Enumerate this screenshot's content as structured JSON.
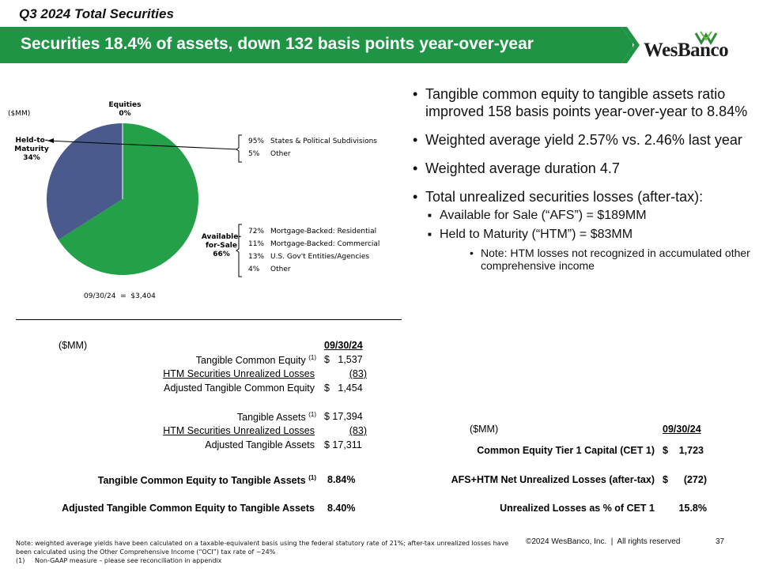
{
  "header": {
    "slide_label": "Q3 2024 Total Securities",
    "banner_title": "Securities 18.4% of assets, down 132 basis points year-over-year",
    "logo_text": "WesBanco",
    "colors": {
      "banner_green": "#1e9444",
      "logo_green": "#2e8b3a"
    }
  },
  "pie": {
    "unit_label": "($MM)",
    "total_label": "09/30/24  =  $3,404",
    "chart_data": {
      "type": "pie",
      "slices": [
        {
          "name": "Equities",
          "value": 0,
          "label": "Equities\n0%",
          "color": "#ffffff"
        },
        {
          "name": "Held-to-Maturity",
          "value": 34,
          "label": "Held-to-Maturity 34%",
          "color": "#4a5a8c"
        },
        {
          "name": "Available-for-Sale",
          "value": 66,
          "label": "Available-for-Sale 66%",
          "color": "#24a048"
        }
      ]
    },
    "labels": {
      "equities_name": "Equities",
      "equities_pct": "0%",
      "htm_name1": "Held-to-",
      "htm_name2": "Maturity",
      "htm_pct": "34%",
      "afs_name1": "Available-",
      "afs_name2": "for-Sale",
      "afs_pct": "66%"
    },
    "htm_breakdown": [
      {
        "pct": "95%",
        "label": "States & Political Subdivisions"
      },
      {
        "pct": "5%",
        "label": "Other"
      }
    ],
    "afs_breakdown": [
      {
        "pct": "72%",
        "label": "Mortgage-Backed: Residential"
      },
      {
        "pct": "11%",
        "label": "Mortgage-Backed: Commercial"
      },
      {
        "pct": "13%",
        "label": "U.S. Gov't Entities/Agencies"
      },
      {
        "pct": "4%",
        "label": "Other"
      }
    ]
  },
  "bullets": {
    "b1": "Tangible common equity to tangible assets ratio improved 158 basis points year-over-year to 8.84%",
    "b2": "Weighted average yield 2.57% vs. 2.46% last year",
    "b3": "Weighted average duration 4.7",
    "b4": "Total unrealized securities losses (after-tax):",
    "b4_sub1": "Available for Sale (“AFS”) = $189MM",
    "b4_sub2": "Held to Maturity (“HTM”) = $83MM",
    "b4_note": "Note: HTM losses not recognized in accumulated other comprehensive income"
  },
  "left_table": {
    "unit": "($MM)",
    "date_header": "09/30/24",
    "rows": [
      {
        "label": "Tangible Common Equity",
        "sup": "(1)",
        "value": "$   1,537"
      },
      {
        "label": "HTM Securities Unrealized Losses",
        "value": "(83)"
      },
      {
        "label": "Adjusted Tangible Common Equity",
        "value": "$   1,454"
      },
      {
        "label": "Tangible Assets",
        "sup": "(1)",
        "value": "$ 17,394"
      },
      {
        "label": "HTM Securities Unrealized Losses",
        "value": "(83)"
      },
      {
        "label": "Adjusted Tangible Assets",
        "value": "$ 17,311"
      }
    ],
    "ratio1_label": "Tangible Common Equity to Tangible Assets",
    "ratio1_sup": "(1)",
    "ratio1_value": "8.84%",
    "ratio2_label": "Adjusted Tangible Common Equity to Tangible Assets",
    "ratio2_value": "8.40%"
  },
  "right_table": {
    "unit": "($MM)",
    "date_header": "09/30/24",
    "rows": [
      {
        "label": "Common Equity Tier 1 Capital (CET 1)",
        "cur": "$",
        "value": "1,723"
      },
      {
        "label": "AFS+HTM Net Unrealized Losses (after-tax)",
        "cur": "$",
        "value": "(272)"
      },
      {
        "label": "Unrealized Losses as % of CET 1",
        "cur": "",
        "value": "15.8%"
      }
    ]
  },
  "footer": {
    "note": "Note: weighted average yields have been calculated on a taxable-equivalent basis using the federal statutory rate of 21%; after-tax unrealized losses have been calculated using the Other Comprehensive Income (“OCI”) tax rate of ~24%",
    "footnote1": "(1)     Non-GAAP measure – please see reconciliation in appendix",
    "copyright": "©2024 WesBanco, Inc.  |  All rights reserved",
    "page": "37"
  }
}
